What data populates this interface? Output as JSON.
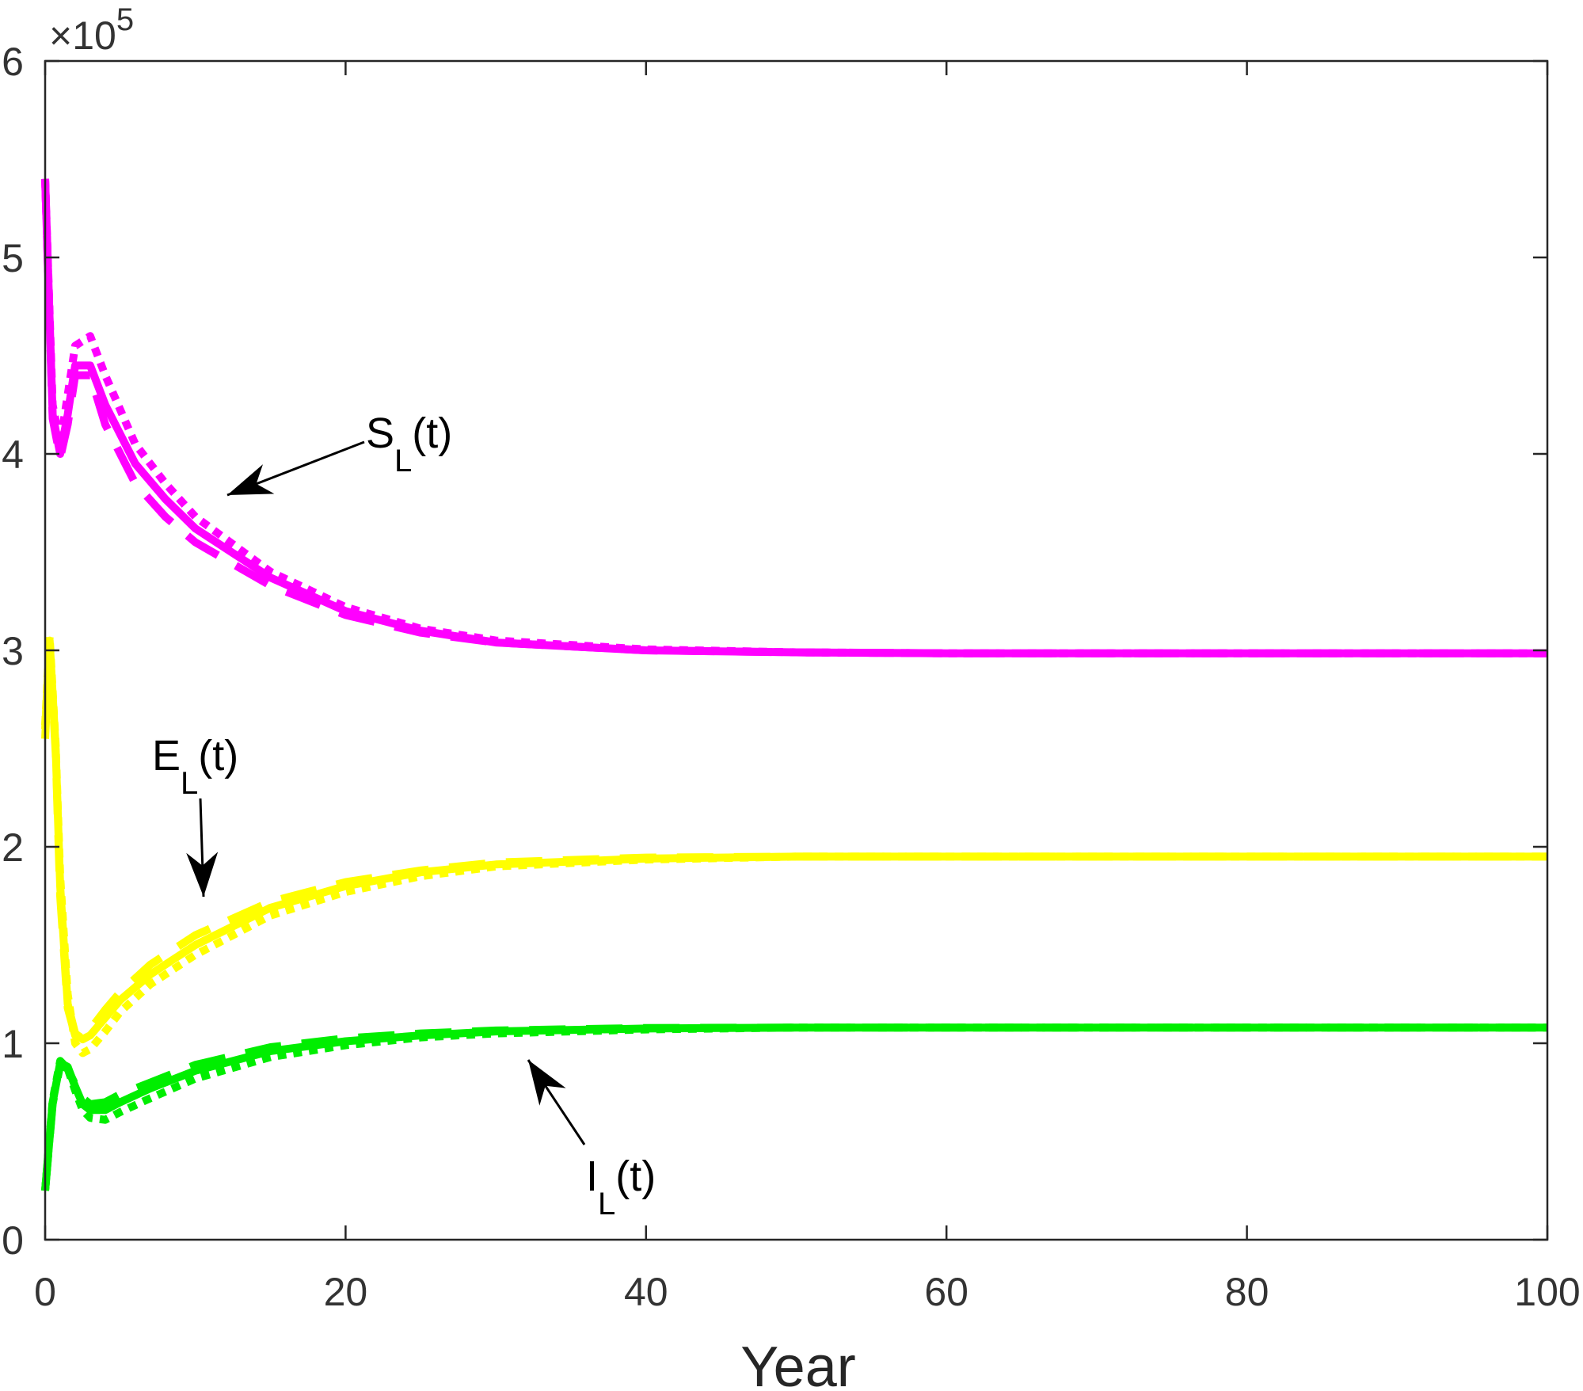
{
  "chart_data": {
    "type": "line",
    "xlabel": "Year",
    "ylabel": "",
    "xlim": [
      0,
      100
    ],
    "ylim": [
      0,
      600000
    ],
    "x_ticks": [
      "0",
      "20",
      "40",
      "60",
      "80",
      "100"
    ],
    "y_ticks": [
      "0",
      "1",
      "2",
      "3",
      "4",
      "5",
      "6"
    ],
    "y_exponent_prefix": "×10",
    "y_exponent": "5",
    "grid": false,
    "colors": {
      "S": "#ff00ff",
      "E": "#ffff00",
      "I": "#00ee00"
    },
    "line_styles": [
      "solid",
      "dashed",
      "dotted"
    ],
    "annotations": [
      {
        "series": "S",
        "main": "S",
        "sub": "L",
        "suffix": "(t)"
      },
      {
        "series": "E",
        "main": "E",
        "sub": "L",
        "suffix": "(t)"
      },
      {
        "series": "I",
        "main": "I",
        "sub": "L",
        "suffix": "(t)"
      }
    ],
    "series": [
      {
        "group": "S",
        "style": "solid",
        "x": [
          0,
          0.5,
          1,
          1.5,
          2,
          3,
          4,
          6,
          8,
          10,
          15,
          20,
          25,
          30,
          40,
          50,
          60,
          80,
          100
        ],
        "y": [
          540000,
          420000,
          400000,
          420000,
          445000,
          445000,
          425000,
          395000,
          377000,
          362000,
          337000,
          320000,
          310000,
          304000,
          300000,
          299000,
          298500,
          298500,
          298500
        ]
      },
      {
        "group": "S",
        "style": "dashed",
        "x": [
          0,
          0.5,
          1,
          1.5,
          2,
          3,
          4,
          6,
          8,
          10,
          15,
          20,
          25,
          30,
          40,
          50,
          60,
          80,
          100
        ],
        "y": [
          540000,
          418000,
          398000,
          415000,
          440000,
          440000,
          415000,
          385000,
          368000,
          355000,
          333000,
          318000,
          309000,
          304000,
          300000,
          299000,
          298500,
          298500,
          298500
        ]
      },
      {
        "group": "S",
        "style": "dotted",
        "x": [
          0,
          0.5,
          1,
          1.5,
          2,
          3,
          4,
          6,
          8,
          10,
          15,
          20,
          25,
          30,
          40,
          50,
          60,
          80,
          100
        ],
        "y": [
          540000,
          425000,
          405000,
          430000,
          455000,
          460000,
          440000,
          405000,
          385000,
          368000,
          340000,
          322000,
          311000,
          305000,
          300500,
          299000,
          298500,
          298500,
          298500
        ]
      },
      {
        "group": "E",
        "style": "solid",
        "x": [
          0,
          0.3,
          0.7,
          1,
          1.5,
          2,
          2.5,
          3,
          4,
          5,
          7,
          10,
          15,
          20,
          25,
          30,
          40,
          50,
          60,
          80,
          100
        ],
        "y": [
          260000,
          305000,
          250000,
          180000,
          120000,
          105000,
          102000,
          104000,
          113000,
          122000,
          135000,
          150000,
          169000,
          180000,
          187000,
          191000,
          194000,
          195000,
          195000,
          195000,
          195000
        ]
      },
      {
        "group": "E",
        "style": "dashed",
        "x": [
          0,
          0.3,
          0.7,
          1,
          1.5,
          2,
          2.5,
          3,
          4,
          5,
          7,
          10,
          15,
          20,
          25,
          30,
          40,
          50,
          60,
          80,
          100
        ],
        "y": [
          255000,
          303000,
          248000,
          175000,
          118000,
          104000,
          103000,
          107000,
          117000,
          126000,
          140000,
          155000,
          172000,
          182000,
          188000,
          192000,
          194500,
          195000,
          195000,
          195000,
          195000
        ]
      },
      {
        "group": "E",
        "style": "dotted",
        "x": [
          0,
          0.3,
          0.7,
          1,
          1.5,
          2,
          2.5,
          3,
          4,
          5,
          7,
          10,
          15,
          20,
          25,
          30,
          40,
          50,
          60,
          80,
          100
        ],
        "y": [
          262000,
          307000,
          252000,
          185000,
          125000,
          100000,
          95000,
          97000,
          106000,
          116000,
          130000,
          145000,
          165000,
          177000,
          185000,
          190000,
          193500,
          195000,
          195000,
          195000,
          195000
        ]
      },
      {
        "group": "I",
        "style": "solid",
        "x": [
          0,
          0.5,
          1,
          1.5,
          2,
          2.5,
          3,
          4,
          5,
          7,
          10,
          15,
          20,
          25,
          30,
          40,
          50,
          60,
          80,
          100
        ],
        "y": [
          25000,
          70000,
          90000,
          88000,
          78000,
          69000,
          66000,
          66000,
          70000,
          77000,
          86000,
          96000,
          101000,
          104000,
          106000,
          107500,
          108000,
          108000,
          108000,
          108000
        ]
      },
      {
        "group": "I",
        "style": "dashed",
        "x": [
          0,
          0.5,
          1,
          1.5,
          2,
          2.5,
          3,
          4,
          5,
          7,
          10,
          15,
          20,
          25,
          30,
          40,
          50,
          60,
          80,
          100
        ],
        "y": [
          25000,
          69000,
          89000,
          87000,
          79000,
          72000,
          69000,
          70000,
          74000,
          80000,
          89000,
          98000,
          102500,
          105000,
          106500,
          107800,
          108000,
          108000,
          108000,
          108000
        ]
      },
      {
        "group": "I",
        "style": "dotted",
        "x": [
          0,
          0.5,
          1,
          1.5,
          2,
          2.5,
          3,
          4,
          5,
          7,
          10,
          15,
          20,
          25,
          30,
          40,
          50,
          60,
          80,
          100
        ],
        "y": [
          25000,
          71000,
          91000,
          87000,
          76000,
          66000,
          62000,
          61000,
          65000,
          72000,
          82000,
          93000,
          99000,
          103000,
          105000,
          107000,
          108000,
          108000,
          108000,
          108000
        ]
      }
    ]
  }
}
